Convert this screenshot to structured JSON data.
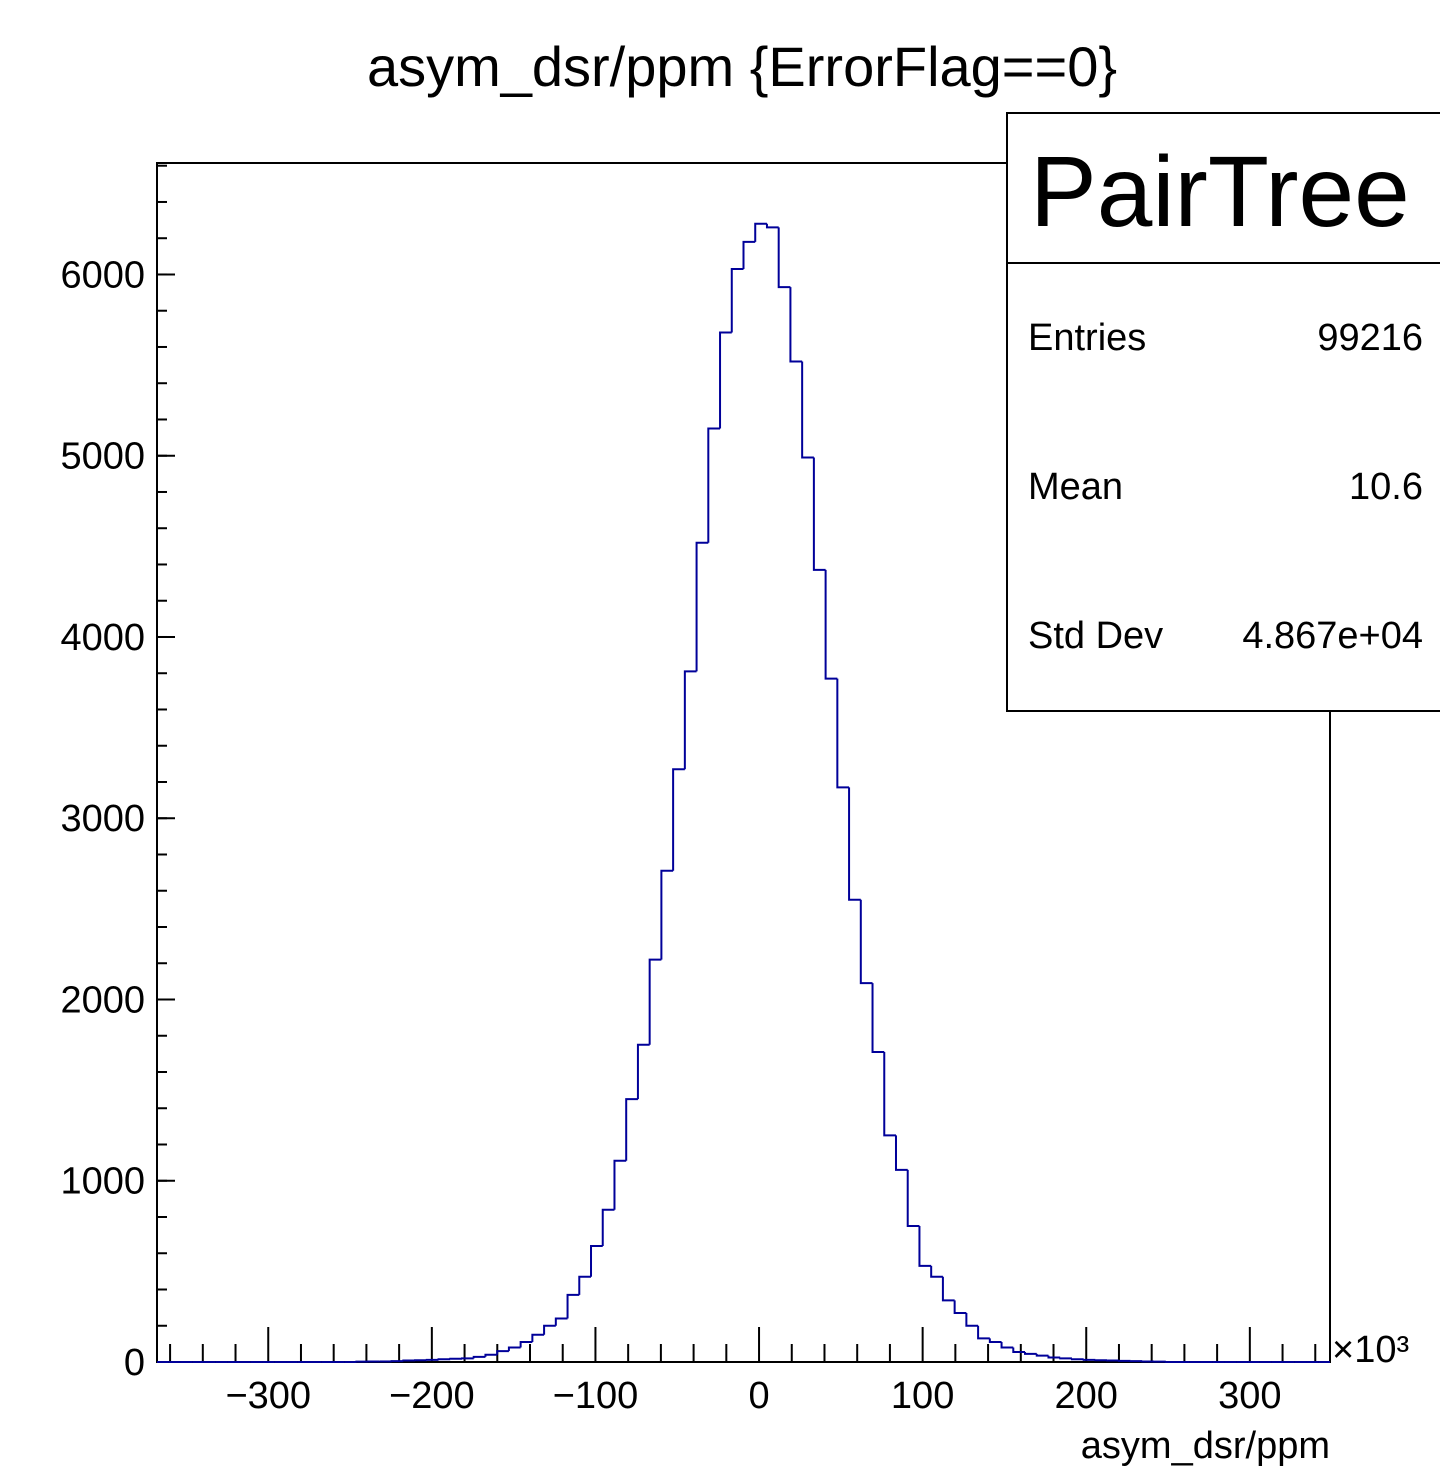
{
  "chart_data": {
    "type": "histogram",
    "title": "asym_dsr/ppm {ErrorFlag==0}",
    "xlabel": "asym_dsr/ppm",
    "x_multiplier": "×10³",
    "bins": [
      -368,
      -360.83,
      -353.66,
      -346.49,
      -339.32,
      -332.15,
      -324.98,
      -317.81,
      -310.64,
      -303.47,
      -296.3,
      -289.13,
      -281.96,
      -274.79,
      -267.62,
      -260.45,
      -253.28,
      -246.11,
      -238.94,
      -231.77,
      -224.6,
      -217.43,
      -210.26,
      -203.09,
      -195.92,
      -188.75,
      -181.58,
      -174.41,
      -167.24,
      -160.07,
      -152.9,
      -145.73,
      -138.56,
      -131.39,
      -124.22,
      -117.05,
      -109.88,
      -102.71,
      -95.54,
      -88.37,
      -81.2,
      -74.03,
      -66.86,
      -59.69,
      -52.52,
      -45.35,
      -38.18,
      -31.01,
      -23.84,
      -16.67,
      -9.5,
      -2.33,
      4.84,
      12.01,
      19.18,
      26.35,
      33.52,
      40.69,
      47.86,
      55.03,
      62.2,
      69.37,
      76.54,
      83.71,
      90.88,
      98.05,
      105.22,
      112.39,
      119.56,
      126.73,
      133.9,
      141.07,
      148.24,
      155.41,
      162.58,
      169.75,
      176.92,
      184.09,
      191.26,
      198.43,
      205.6,
      212.77,
      219.94,
      227.11,
      234.28,
      241.45,
      248.62,
      255.79,
      262.96,
      270.13,
      277.3,
      284.47,
      291.64,
      298.81,
      305.98,
      313.15,
      320.32,
      327.49,
      334.66,
      341.83,
      349.0
    ],
    "values": [
      0,
      0,
      0,
      0,
      0,
      0,
      0,
      0,
      0,
      0,
      0,
      0,
      0,
      0,
      0,
      0,
      0,
      2,
      3,
      3,
      5,
      8,
      10,
      12,
      15,
      18,
      20,
      28,
      40,
      60,
      80,
      110,
      150,
      200,
      240,
      370,
      470,
      640,
      840,
      1110,
      1450,
      1750,
      2220,
      2710,
      3270,
      3810,
      4520,
      5150,
      5680,
      6030,
      6180,
      6280,
      6260,
      5930,
      5520,
      4990,
      4370,
      3770,
      3170,
      2550,
      2090,
      1710,
      1250,
      1060,
      750,
      530,
      470,
      340,
      270,
      200,
      130,
      110,
      80,
      55,
      45,
      35,
      25,
      20,
      15,
      12,
      10,
      8,
      6,
      5,
      3,
      2,
      0,
      0,
      0,
      0,
      0,
      0,
      0,
      0,
      0,
      0,
      0,
      0,
      0,
      0
    ],
    "color": "#000099",
    "xlim": [
      -368,
      349
    ],
    "ylim": [
      0,
      6615
    ],
    "xticks": [
      {
        "value": -300,
        "label": "−300"
      },
      {
        "value": -200,
        "label": "−200"
      },
      {
        "value": -100,
        "label": "−100"
      },
      0,
      100,
      200,
      300
    ],
    "yticks": [
      0,
      1000,
      2000,
      3000,
      4000,
      5000,
      6000
    ],
    "minor_divisions": 5,
    "stats": {
      "title": "PairTree",
      "rows": [
        [
          "Entries",
          "99216"
        ],
        [
          "Mean",
          "10.6"
        ],
        [
          "Std Dev",
          "4.867e+04"
        ]
      ]
    }
  }
}
